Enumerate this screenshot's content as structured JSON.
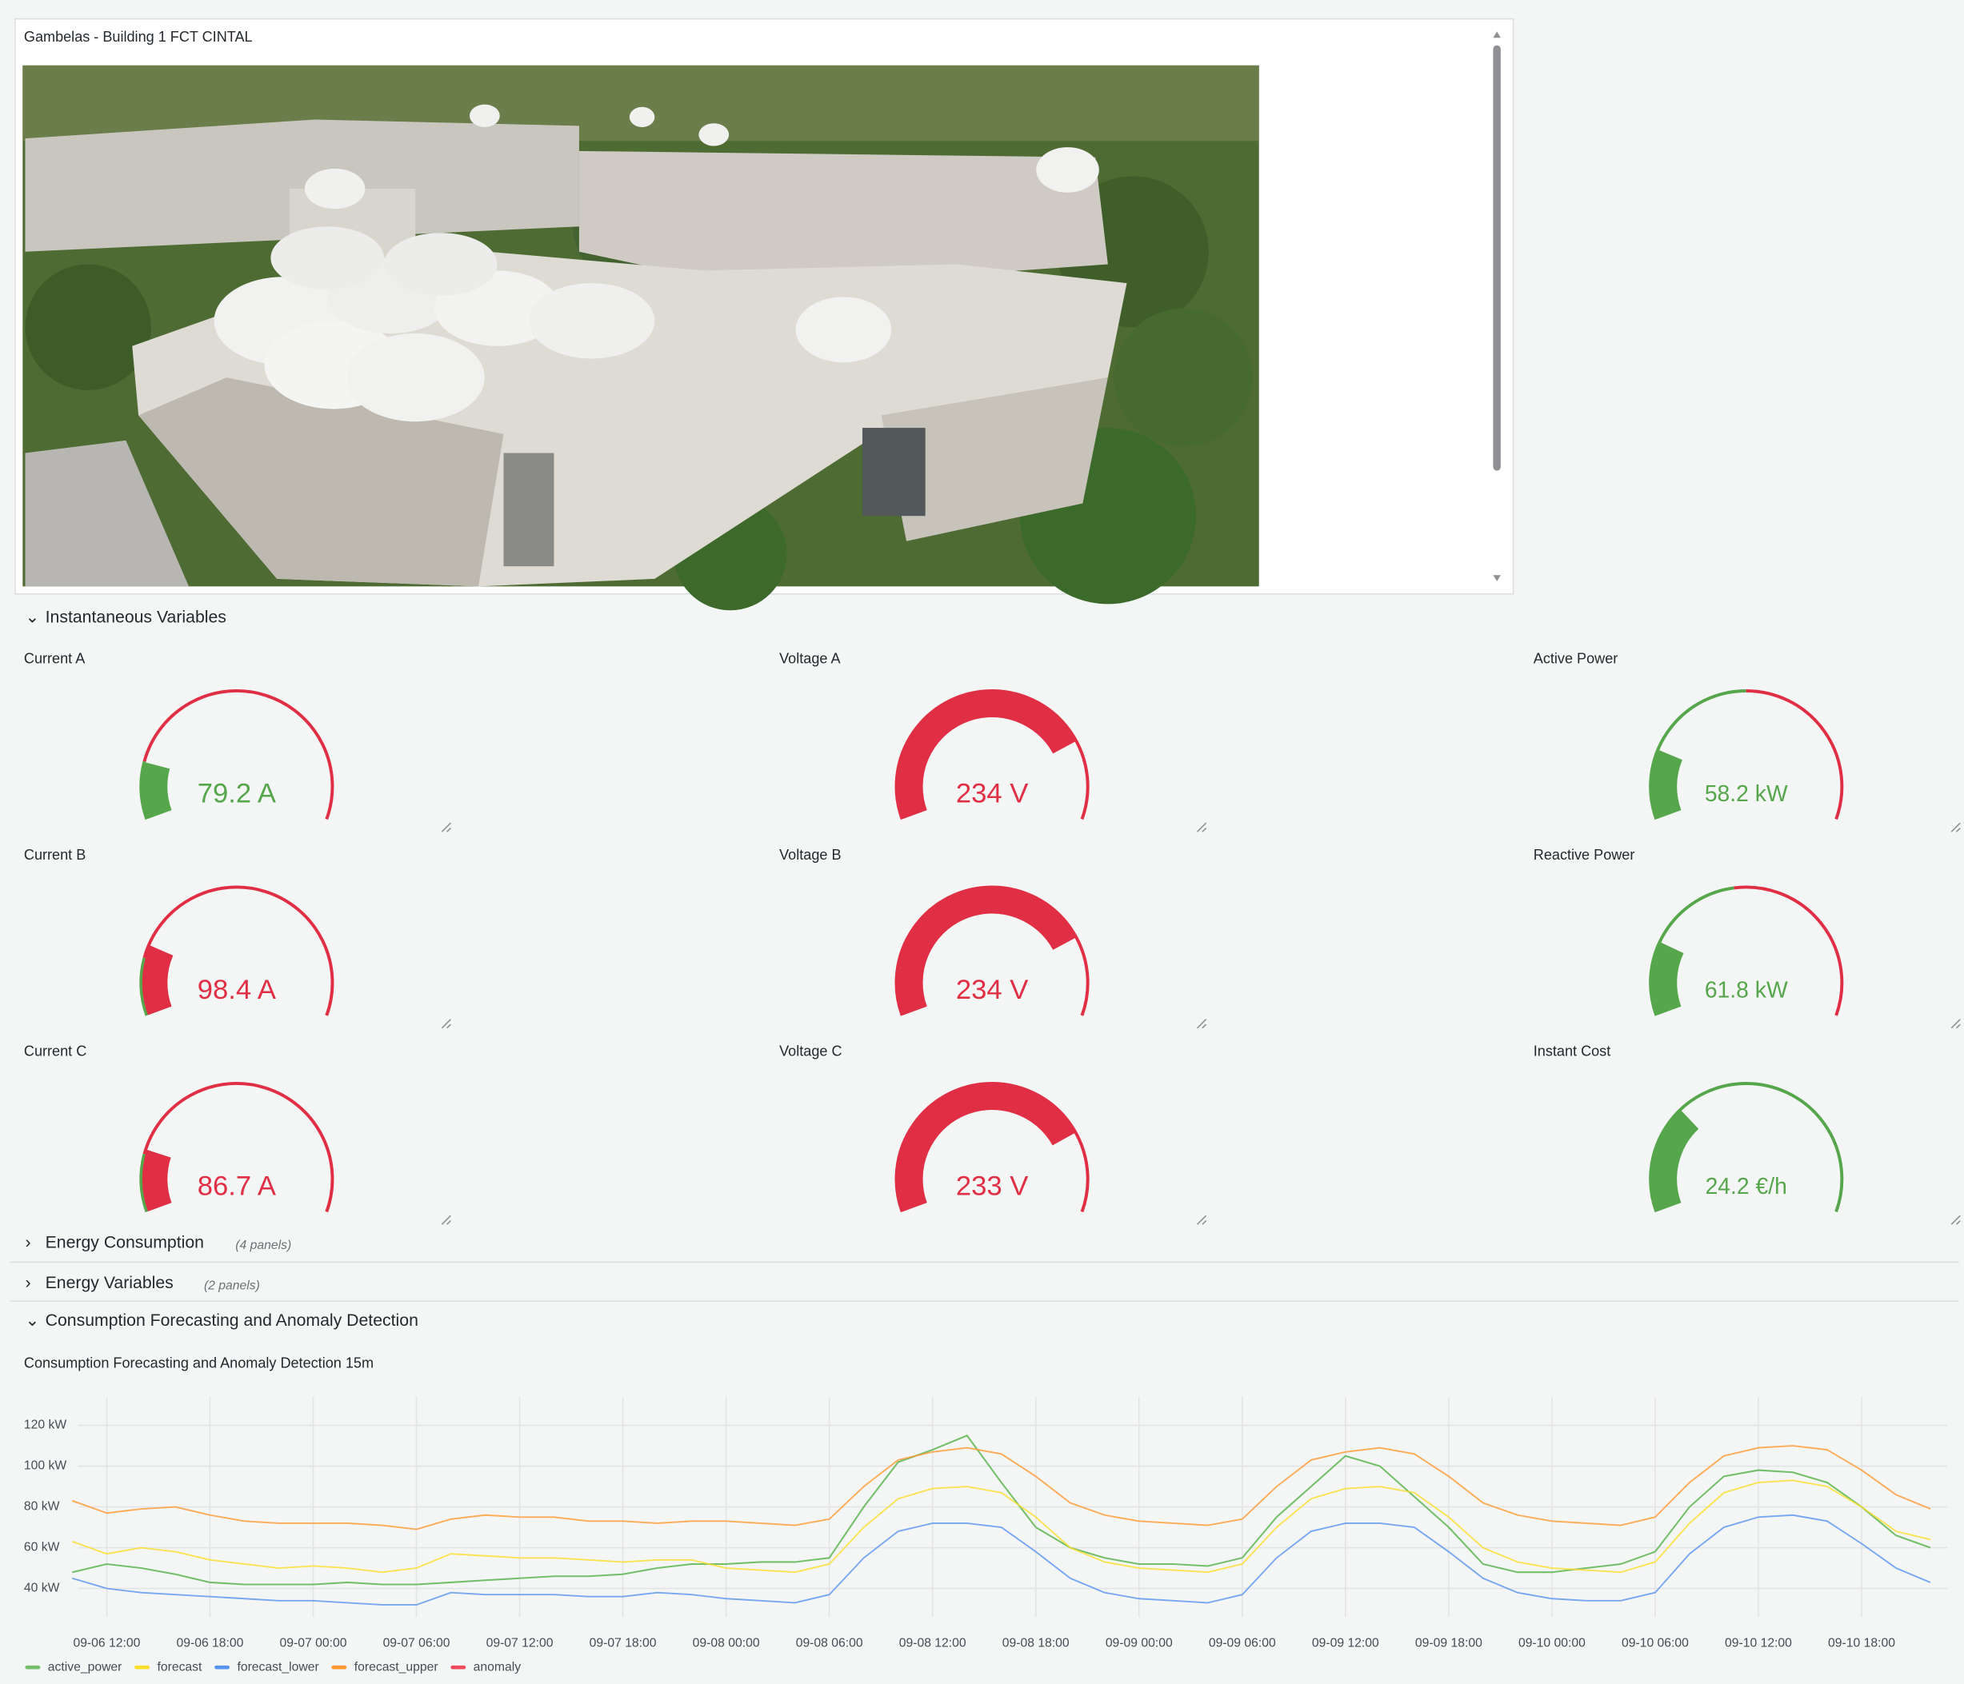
{
  "image_panel": {
    "title": "Gambelas - Building 1 FCT CINTAL"
  },
  "rows": {
    "instantaneous": {
      "title": "Instantaneous Variables"
    },
    "energy_consumption": {
      "title": "Energy Consumption",
      "note": "(4 panels)"
    },
    "energy_variables": {
      "title": "Energy Variables",
      "note": "(2 panels)"
    },
    "forecasting": {
      "title": "Consumption Forecasting and Anomaly Detection"
    }
  },
  "gauge_colors": {
    "ok": "#56a64b",
    "alert": "#e02f44"
  },
  "gauges": [
    {
      "title": "Current A",
      "value": 79.2,
      "value_label": "79.2 A",
      "min": 0,
      "max": 500,
      "threshold": 80
    },
    {
      "title": "Voltage A",
      "value": 234,
      "value_label": "234 V",
      "min": 0,
      "max": 300,
      "threshold": 0
    },
    {
      "title": "Active Power",
      "value": 58.2,
      "value_label": "58.2 kW",
      "min": 0,
      "max": 300,
      "threshold": 150
    },
    {
      "title": "Current B",
      "value": 98.4,
      "value_label": "98.4 A",
      "min": 0,
      "max": 500,
      "threshold": 80
    },
    {
      "title": "Voltage B",
      "value": 234,
      "value_label": "234 V",
      "min": 0,
      "max": 300,
      "threshold": 0
    },
    {
      "title": "Reactive Power",
      "value": 61.8,
      "value_label": "61.8 kW",
      "min": 0,
      "max": 300,
      "threshold": 140
    },
    {
      "title": "Current C",
      "value": 86.7,
      "value_label": "86.7 A",
      "min": 0,
      "max": 500,
      "threshold": 80
    },
    {
      "title": "Voltage C",
      "value": 233,
      "value_label": "233 V",
      "min": 0,
      "max": 300,
      "threshold": 0
    },
    {
      "title": "Instant Cost",
      "value": 24.2,
      "value_label": "24.2 €/h",
      "min": 0,
      "max": 80,
      "threshold": null
    }
  ],
  "chart_data": {
    "type": "line",
    "title": "Consumption Forecasting and Anomaly Detection 15m",
    "x": [
      "09-06 10:00",
      "09-06 12:00",
      "09-06 14:00",
      "09-06 16:00",
      "09-06 18:00",
      "09-06 20:00",
      "09-06 22:00",
      "09-07 00:00",
      "09-07 02:00",
      "09-07 04:00",
      "09-07 06:00",
      "09-07 08:00",
      "09-07 10:00",
      "09-07 12:00",
      "09-07 14:00",
      "09-07 16:00",
      "09-07 18:00",
      "09-07 20:00",
      "09-07 22:00",
      "09-08 00:00",
      "09-08 02:00",
      "09-08 04:00",
      "09-08 06:00",
      "09-08 08:00",
      "09-08 10:00",
      "09-08 12:00",
      "09-08 14:00",
      "09-08 16:00",
      "09-08 18:00",
      "09-08 20:00",
      "09-08 22:00",
      "09-09 00:00",
      "09-09 02:00",
      "09-09 04:00",
      "09-09 06:00",
      "09-09 08:00",
      "09-09 10:00",
      "09-09 12:00",
      "09-09 14:00",
      "09-09 16:00",
      "09-09 18:00",
      "09-09 20:00",
      "09-09 22:00",
      "09-10 00:00",
      "09-10 02:00",
      "09-10 04:00",
      "09-10 06:00",
      "09-10 08:00",
      "09-10 10:00",
      "09-10 12:00",
      "09-10 14:00",
      "09-10 16:00",
      "09-10 18:00",
      "09-10 20:00",
      "09-10 22:00"
    ],
    "series": [
      {
        "name": "active_power",
        "color": "#73bf69",
        "values": [
          48,
          52,
          50,
          47,
          43,
          42,
          42,
          42,
          43,
          42,
          42,
          43,
          44,
          45,
          46,
          46,
          47,
          50,
          52,
          52,
          53,
          53,
          55,
          80,
          102,
          108,
          115,
          92,
          70,
          60,
          55,
          52,
          52,
          51,
          55,
          75,
          90,
          105,
          100,
          85,
          70,
          52,
          48,
          48,
          50,
          52,
          58,
          80,
          95,
          98,
          97,
          92,
          80,
          66,
          60
        ]
      },
      {
        "name": "forecast",
        "color": "#fade2a",
        "values": [
          63,
          57,
          60,
          58,
          54,
          52,
          50,
          51,
          50,
          48,
          50,
          57,
          56,
          55,
          55,
          54,
          53,
          54,
          54,
          50,
          49,
          48,
          52,
          70,
          84,
          89,
          90,
          87,
          75,
          60,
          53,
          50,
          49,
          48,
          52,
          70,
          84,
          89,
          90,
          87,
          75,
          60,
          53,
          50,
          49,
          48,
          53,
          72,
          87,
          92,
          93,
          90,
          80,
          68,
          64
        ]
      },
      {
        "name": "forecast_lower",
        "color": "#5794f2",
        "values": [
          45,
          40,
          38,
          37,
          36,
          35,
          34,
          34,
          33,
          32,
          32,
          38,
          37,
          37,
          37,
          36,
          36,
          38,
          37,
          35,
          34,
          33,
          37,
          55,
          68,
          72,
          72,
          70,
          58,
          45,
          38,
          35,
          34,
          33,
          37,
          55,
          68,
          72,
          72,
          70,
          58,
          45,
          38,
          35,
          34,
          34,
          38,
          57,
          70,
          75,
          76,
          73,
          62,
          50,
          43
        ]
      },
      {
        "name": "forecast_upper",
        "color": "#ff9830",
        "values": [
          83,
          77,
          79,
          80,
          76,
          73,
          72,
          72,
          72,
          71,
          69,
          74,
          76,
          75,
          75,
          73,
          73,
          72,
          73,
          73,
          72,
          71,
          74,
          90,
          103,
          107,
          109,
          106,
          95,
          82,
          76,
          73,
          72,
          71,
          74,
          90,
          103,
          107,
          109,
          106,
          95,
          82,
          76,
          73,
          72,
          71,
          75,
          92,
          105,
          109,
          110,
          108,
          98,
          86,
          79
        ]
      },
      {
        "name": "anomaly",
        "color": "#f2495c",
        "values": [
          null,
          null,
          null,
          null,
          null,
          null,
          null,
          null,
          null,
          null,
          null,
          null,
          null,
          null,
          null,
          null,
          null,
          null,
          null,
          null,
          null,
          null,
          null,
          null,
          null,
          null,
          null,
          null,
          null,
          null,
          null,
          null,
          null,
          null,
          null,
          null,
          null,
          null,
          null,
          null,
          null,
          null,
          null,
          null,
          null,
          null,
          null,
          null,
          null,
          null,
          null,
          null,
          null,
          null,
          null
        ]
      }
    ],
    "xlim": [
      "09-06 10:20",
      "09-10 23:00"
    ],
    "xticks": [
      "09-06 12:00",
      "09-06 18:00",
      "09-07 00:00",
      "09-07 06:00",
      "09-07 12:00",
      "09-07 18:00",
      "09-08 00:00",
      "09-08 06:00",
      "09-08 12:00",
      "09-08 18:00",
      "09-09 00:00",
      "09-09 06:00",
      "09-09 12:00",
      "09-09 18:00",
      "09-10 00:00",
      "09-10 06:00",
      "09-10 12:00",
      "09-10 18:00"
    ],
    "ylim": [
      26,
      134
    ],
    "yticks": [
      {
        "value": 40,
        "label": "40 kW"
      },
      {
        "value": 60,
        "label": "60 kW"
      },
      {
        "value": 80,
        "label": "80 kW"
      },
      {
        "value": 100,
        "label": "100 kW"
      },
      {
        "value": 120,
        "label": "120 kW"
      }
    ],
    "grid": true,
    "legend": "bottom-left"
  }
}
